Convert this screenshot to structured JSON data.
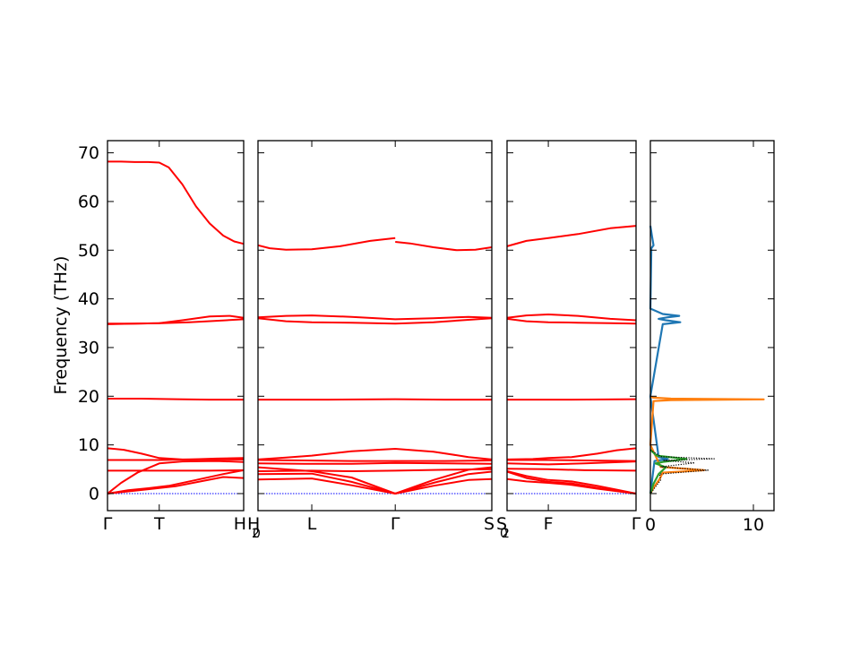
{
  "chart_data": {
    "type": "line",
    "ylabel": "Frequency (THz)",
    "ylim": [
      -3.5,
      72.5
    ],
    "yticks": [
      0,
      10,
      20,
      30,
      40,
      50,
      60,
      70
    ],
    "band_color": "#ff0000",
    "zero_line_color": "#0000ff",
    "panels": [
      {
        "xlim": [
          0,
          1
        ],
        "ticks": [
          {
            "x": 0,
            "label": "Γ"
          },
          {
            "x": 0.38,
            "label": "T"
          },
          {
            "x": 1,
            "label": "H",
            "sub": "2"
          }
        ],
        "zero_line": true,
        "bands": [
          {
            "x": [
              0,
              0.1,
              0.2,
              0.3,
              0.38,
              0.45,
              0.55,
              0.65,
              0.75,
              0.85,
              0.93,
              1
            ],
            "y": [
              68.2,
              68.2,
              68.1,
              68.1,
              68.0,
              67.0,
              63.5,
              59.0,
              55.5,
              53.0,
              51.8,
              51.3
            ]
          },
          {
            "x": [
              0,
              0.2,
              0.4,
              0.6,
              0.8,
              1
            ],
            "y": [
              34.8,
              34.9,
              35.0,
              35.2,
              35.5,
              35.8
            ]
          },
          {
            "x": [
              0,
              0.2,
              0.38,
              0.55,
              0.75,
              0.9,
              1
            ],
            "y": [
              34.9,
              34.9,
              35.0,
              35.6,
              36.4,
              36.5,
              36.1
            ]
          },
          {
            "x": [
              0,
              0.25,
              0.5,
              0.75,
              1
            ],
            "y": [
              19.5,
              19.5,
              19.4,
              19.3,
              19.3
            ]
          },
          {
            "x": [
              0,
              0.12,
              0.25,
              0.38,
              0.55,
              0.8,
              1
            ],
            "y": [
              9.3,
              9.0,
              8.2,
              7.3,
              7.0,
              7.0,
              7.0
            ]
          },
          {
            "x": [
              0,
              0.2,
              0.38,
              0.6,
              0.8,
              1
            ],
            "y": [
              6.9,
              6.9,
              6.9,
              7.0,
              7.2,
              7.3
            ]
          },
          {
            "x": [
              0,
              0.25,
              0.5,
              0.75,
              1
            ],
            "y": [
              4.7,
              4.7,
              4.7,
              4.7,
              4.8
            ]
          },
          {
            "x": [
              0,
              0.1,
              0.22,
              0.38,
              0.55,
              0.8,
              1
            ],
            "y": [
              0,
              2.2,
              4.3,
              6.2,
              6.6,
              6.7,
              6.5
            ]
          },
          {
            "x": [
              0,
              0.15,
              0.3,
              0.45,
              0.65,
              0.85,
              1
            ],
            "y": [
              0,
              0.7,
              1.1,
              1.6,
              2.8,
              4.0,
              4.8
            ]
          },
          {
            "x": [
              0,
              0.3,
              0.5,
              0.7,
              0.85,
              1
            ],
            "y": [
              0,
              0.9,
              1.5,
              2.6,
              3.4,
              3.2
            ]
          }
        ]
      },
      {
        "xlim": [
          0,
          1
        ],
        "ticks": [
          {
            "x": 0,
            "label": "H",
            "sub": "0"
          },
          {
            "x": 0.23,
            "label": "L"
          },
          {
            "x": 0.587,
            "label": "Γ"
          },
          {
            "x": 1,
            "label": "S",
            "sub": "0"
          }
        ],
        "zero_line": true,
        "bands": [
          {
            "x": [
              0,
              0.05,
              0.12,
              0.23,
              0.35,
              0.48,
              0.587
            ],
            "y": [
              51.0,
              50.4,
              50.1,
              50.2,
              50.8,
              51.9,
              52.5
            ]
          },
          {
            "x": [
              0.587,
              0.65,
              0.75,
              0.85,
              0.93,
              1
            ],
            "y": [
              51.7,
              51.4,
              50.6,
              50.0,
              50.1,
              50.6
            ]
          },
          {
            "x": [
              0,
              0.12,
              0.23,
              0.4,
              0.587,
              0.75,
              0.9,
              1
            ],
            "y": [
              36.2,
              36.5,
              36.6,
              36.3,
              35.8,
              36.0,
              36.3,
              36.1
            ]
          },
          {
            "x": [
              0,
              0.12,
              0.23,
              0.4,
              0.587,
              0.75,
              0.9,
              1
            ],
            "y": [
              36.0,
              35.4,
              35.2,
              35.1,
              34.9,
              35.2,
              35.7,
              36.0
            ]
          },
          {
            "x": [
              0,
              0.3,
              0.587,
              0.8,
              1
            ],
            "y": [
              19.3,
              19.3,
              19.4,
              19.3,
              19.3
            ]
          },
          {
            "x": [
              0,
              0.12,
              0.23,
              0.4,
              0.587,
              0.75,
              0.9,
              1
            ],
            "y": [
              7.0,
              7.4,
              7.8,
              8.7,
              9.2,
              8.6,
              7.5,
              7.0
            ]
          },
          {
            "x": [
              0,
              0.2,
              0.4,
              0.587,
              0.8,
              1
            ],
            "y": [
              6.9,
              6.8,
              6.7,
              6.7,
              6.7,
              6.8
            ]
          },
          {
            "x": [
              0,
              0.2,
              0.4,
              0.587,
              0.8,
              1
            ],
            "y": [
              6.2,
              6.1,
              6.1,
              6.3,
              6.2,
              6.1
            ]
          },
          {
            "x": [
              0,
              0.23,
              0.4,
              0.587,
              0.8,
              1
            ],
            "y": [
              4.6,
              4.7,
              4.6,
              4.7,
              4.9,
              5.0
            ]
          },
          {
            "x": [
              0,
              0.23,
              0.4,
              0.587,
              0.75,
              0.9,
              1
            ],
            "y": [
              5.4,
              4.6,
              3.3,
              0,
              2.8,
              4.9,
              5.4
            ]
          },
          {
            "x": [
              0,
              0.23,
              0.4,
              0.587,
              0.75,
              0.9,
              1
            ],
            "y": [
              4.0,
              4.1,
              2.4,
              0,
              2.2,
              4.0,
              4.5
            ]
          },
          {
            "x": [
              0,
              0.23,
              0.4,
              0.587,
              0.75,
              0.9,
              1
            ],
            "y": [
              2.9,
              3.1,
              1.7,
              0,
              1.6,
              2.8,
              3.0
            ]
          }
        ]
      },
      {
        "xlim": [
          0,
          1
        ],
        "ticks": [
          {
            "x": 0,
            "label": "S",
            "sub": "2"
          },
          {
            "x": 0.32,
            "label": "F"
          },
          {
            "x": 1,
            "label": "Γ"
          }
        ],
        "zero_line": true,
        "bands": [
          {
            "x": [
              0,
              0.15,
              0.32,
              0.55,
              0.8,
              1
            ],
            "y": [
              50.8,
              51.9,
              52.5,
              53.3,
              54.5,
              55.0
            ]
          },
          {
            "x": [
              0,
              0.15,
              0.32,
              0.55,
              0.8,
              1
            ],
            "y": [
              36.1,
              36.6,
              36.8,
              36.5,
              35.9,
              35.6
            ]
          },
          {
            "x": [
              0,
              0.15,
              0.32,
              0.55,
              0.8,
              1
            ],
            "y": [
              35.9,
              35.4,
              35.2,
              35.1,
              35.0,
              34.9
            ]
          },
          {
            "x": [
              0,
              0.5,
              1
            ],
            "y": [
              19.3,
              19.3,
              19.4
            ]
          },
          {
            "x": [
              0,
              0.2,
              0.32,
              0.5,
              0.7,
              0.85,
              1
            ],
            "y": [
              7.0,
              7.1,
              7.3,
              7.5,
              8.2,
              8.9,
              9.3
            ]
          },
          {
            "x": [
              0,
              0.32,
              0.6,
              1
            ],
            "y": [
              6.9,
              6.9,
              6.8,
              6.7
            ]
          },
          {
            "x": [
              0,
              0.32,
              0.6,
              1
            ],
            "y": [
              6.2,
              6.0,
              6.2,
              6.6
            ]
          },
          {
            "x": [
              0,
              0.32,
              0.6,
              1
            ],
            "y": [
              5.1,
              5.0,
              4.8,
              4.7
            ]
          },
          {
            "x": [
              0,
              0.15,
              0.32,
              0.5,
              0.7,
              0.85,
              1
            ],
            "y": [
              4.6,
              3.6,
              2.8,
              2.5,
              1.6,
              0.8,
              0
            ]
          },
          {
            "x": [
              0,
              0.15,
              0.32,
              0.5,
              0.7,
              0.85,
              1
            ],
            "y": [
              4.5,
              3.2,
              2.4,
              2.1,
              1.2,
              0.6,
              0
            ]
          },
          {
            "x": [
              0,
              0.15,
              0.32,
              0.5,
              0.7,
              0.85,
              1
            ],
            "y": [
              3.0,
              2.5,
              2.2,
              1.8,
              1.0,
              0.5,
              0
            ]
          }
        ]
      }
    ],
    "dos_panel": {
      "xlim": [
        0,
        12
      ],
      "xticks": [
        0,
        10
      ],
      "series": [
        {
          "color": "#1f77b4",
          "x": [
            0,
            0.15,
            0.3,
            0.1,
            0,
            1.2,
            2.8,
            1.6,
            0.8,
            1.5,
            2.9,
            1.2,
            0,
            0.8,
            1.7,
            0.4,
            0
          ],
          "y": [
            55,
            53,
            51,
            50.4,
            38,
            36.9,
            36.5,
            36.2,
            35.9,
            35.6,
            35.2,
            34.8,
            20,
            7.5,
            7.1,
            6.7,
            0
          ]
        },
        {
          "color": "#ff7f0e",
          "x": [
            0,
            0.3,
            2.0,
            11.0,
            2.0,
            0.3,
            0,
            1.0,
            5.2,
            1.2,
            0.9,
            0.4,
            0
          ],
          "y": [
            19.9,
            19.7,
            19.5,
            19.35,
            19.2,
            19.0,
            10,
            5.5,
            4.8,
            4.3,
            3.0,
            1.5,
            0
          ]
        },
        {
          "color": "#2ca02c",
          "x": [
            0,
            0.6,
            3.5,
            1.2,
            0.5,
            1.5,
            0.8,
            0.3,
            0
          ],
          "y": [
            9.0,
            7.8,
            7.1,
            6.5,
            6.2,
            5.4,
            4.0,
            2.0,
            0
          ]
        },
        {
          "color": "#000000",
          "dotted": true,
          "x": [
            0,
            1.0,
            6.2,
            1.3,
            4.3,
            1.0,
            5.6,
            0.9,
            1.0,
            0
          ],
          "y": [
            9.0,
            7.6,
            7.15,
            6.8,
            6.3,
            5.5,
            4.8,
            4.0,
            2.8,
            0
          ]
        }
      ]
    }
  }
}
